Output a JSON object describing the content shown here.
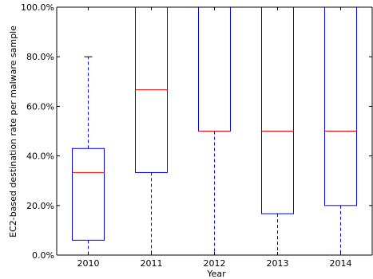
{
  "chart_data": {
    "type": "box",
    "title": "",
    "xlabel": "Year",
    "ylabel": "EC2-based destination rate per malware sample",
    "ylim": [
      0,
      100
    ],
    "y_tick_format": "percent_one_decimal",
    "y_ticks": [
      0,
      20,
      40,
      60,
      80,
      100
    ],
    "y_tick_labels": [
      "0.0%",
      "20.0%",
      "40.0%",
      "60.0%",
      "80.0%",
      "100.0%"
    ],
    "categories": [
      "2010",
      "2011",
      "2012",
      "2013",
      "2014"
    ],
    "boxes": [
      {
        "category": "2010",
        "whisker_low": 0,
        "q1": 6,
        "median": 33.3,
        "q3": 43,
        "whisker_high": 80
      },
      {
        "category": "2011",
        "whisker_low": 0,
        "q1": 33.3,
        "median": 66.7,
        "q3": 100,
        "whisker_high": 100
      },
      {
        "category": "2012",
        "whisker_low": 0,
        "q1": 50,
        "median": 50,
        "q3": 100,
        "whisker_high": 100
      },
      {
        "category": "2013",
        "whisker_low": 0,
        "q1": 16.7,
        "median": 50,
        "q3": 100,
        "whisker_high": 100
      },
      {
        "category": "2014",
        "whisker_low": 0,
        "q1": 20,
        "median": 50,
        "q3": 100,
        "whisker_high": 100
      }
    ],
    "grid": false,
    "legend": "none",
    "colors": {
      "box": "#0000ff",
      "median": "#ff0000",
      "whisker": "#0000ff",
      "cap": "#000000",
      "axis": "#000000"
    }
  }
}
